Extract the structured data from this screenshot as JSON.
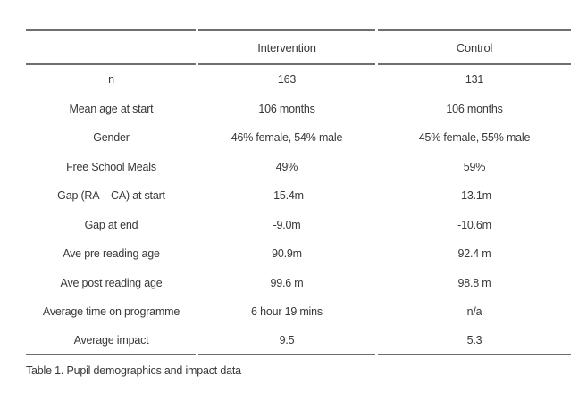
{
  "table": {
    "columns": [
      "",
      "Intervention",
      "Control"
    ],
    "rows": [
      {
        "label": "n",
        "intervention": "163",
        "control": "131"
      },
      {
        "label": "Mean age at start",
        "intervention": "106 months",
        "control": "106 months"
      },
      {
        "label": "Gender",
        "intervention": "46% female, 54% male",
        "control": "45% female, 55% male"
      },
      {
        "label": "Free School Meals",
        "intervention": "49%",
        "control": "59%"
      },
      {
        "label": "Gap (RA – CA) at start",
        "intervention": "-15.4m",
        "control": "-13.1m"
      },
      {
        "label": "Gap at end",
        "intervention": "-9.0m",
        "control": "-10.6m"
      },
      {
        "label": "Ave pre reading age",
        "intervention": "90.9m",
        "control": "92.4 m"
      },
      {
        "label": "Ave post reading age",
        "intervention": "99.6 m",
        "control": "98.8 m"
      },
      {
        "label": "Average time on programme",
        "intervention": "6 hour 19 mins",
        "control": "n/a"
      },
      {
        "label": "Average impact",
        "intervention": "9.5",
        "control": "5.3"
      }
    ],
    "caption": "Table 1. Pupil demographics and impact data"
  },
  "colors": {
    "rule": "#6f6f6f",
    "text": "#383838",
    "background": "#ffffff"
  },
  "chart_data": {
    "type": "table",
    "title": "Table 1. Pupil demographics and impact data",
    "columns": [
      "",
      "Intervention",
      "Control"
    ],
    "rows": [
      [
        "n",
        "163",
        "131"
      ],
      [
        "Mean age at start",
        "106 months",
        "106 months"
      ],
      [
        "Gender",
        "46% female, 54% male",
        "45% female, 55% male"
      ],
      [
        "Free School Meals",
        "49%",
        "59%"
      ],
      [
        "Gap (RA – CA) at start",
        "-15.4m",
        "-13.1m"
      ],
      [
        "Gap at end",
        "-9.0m",
        "-10.6m"
      ],
      [
        "Ave pre reading age",
        "90.9m",
        "92.4 m"
      ],
      [
        "Ave post reading age",
        "99.6 m",
        "98.8 m"
      ],
      [
        "Average time on programme",
        "6 hour 19 mins",
        "n/a"
      ],
      [
        "Average impact",
        "9.5",
        "5.3"
      ]
    ]
  }
}
